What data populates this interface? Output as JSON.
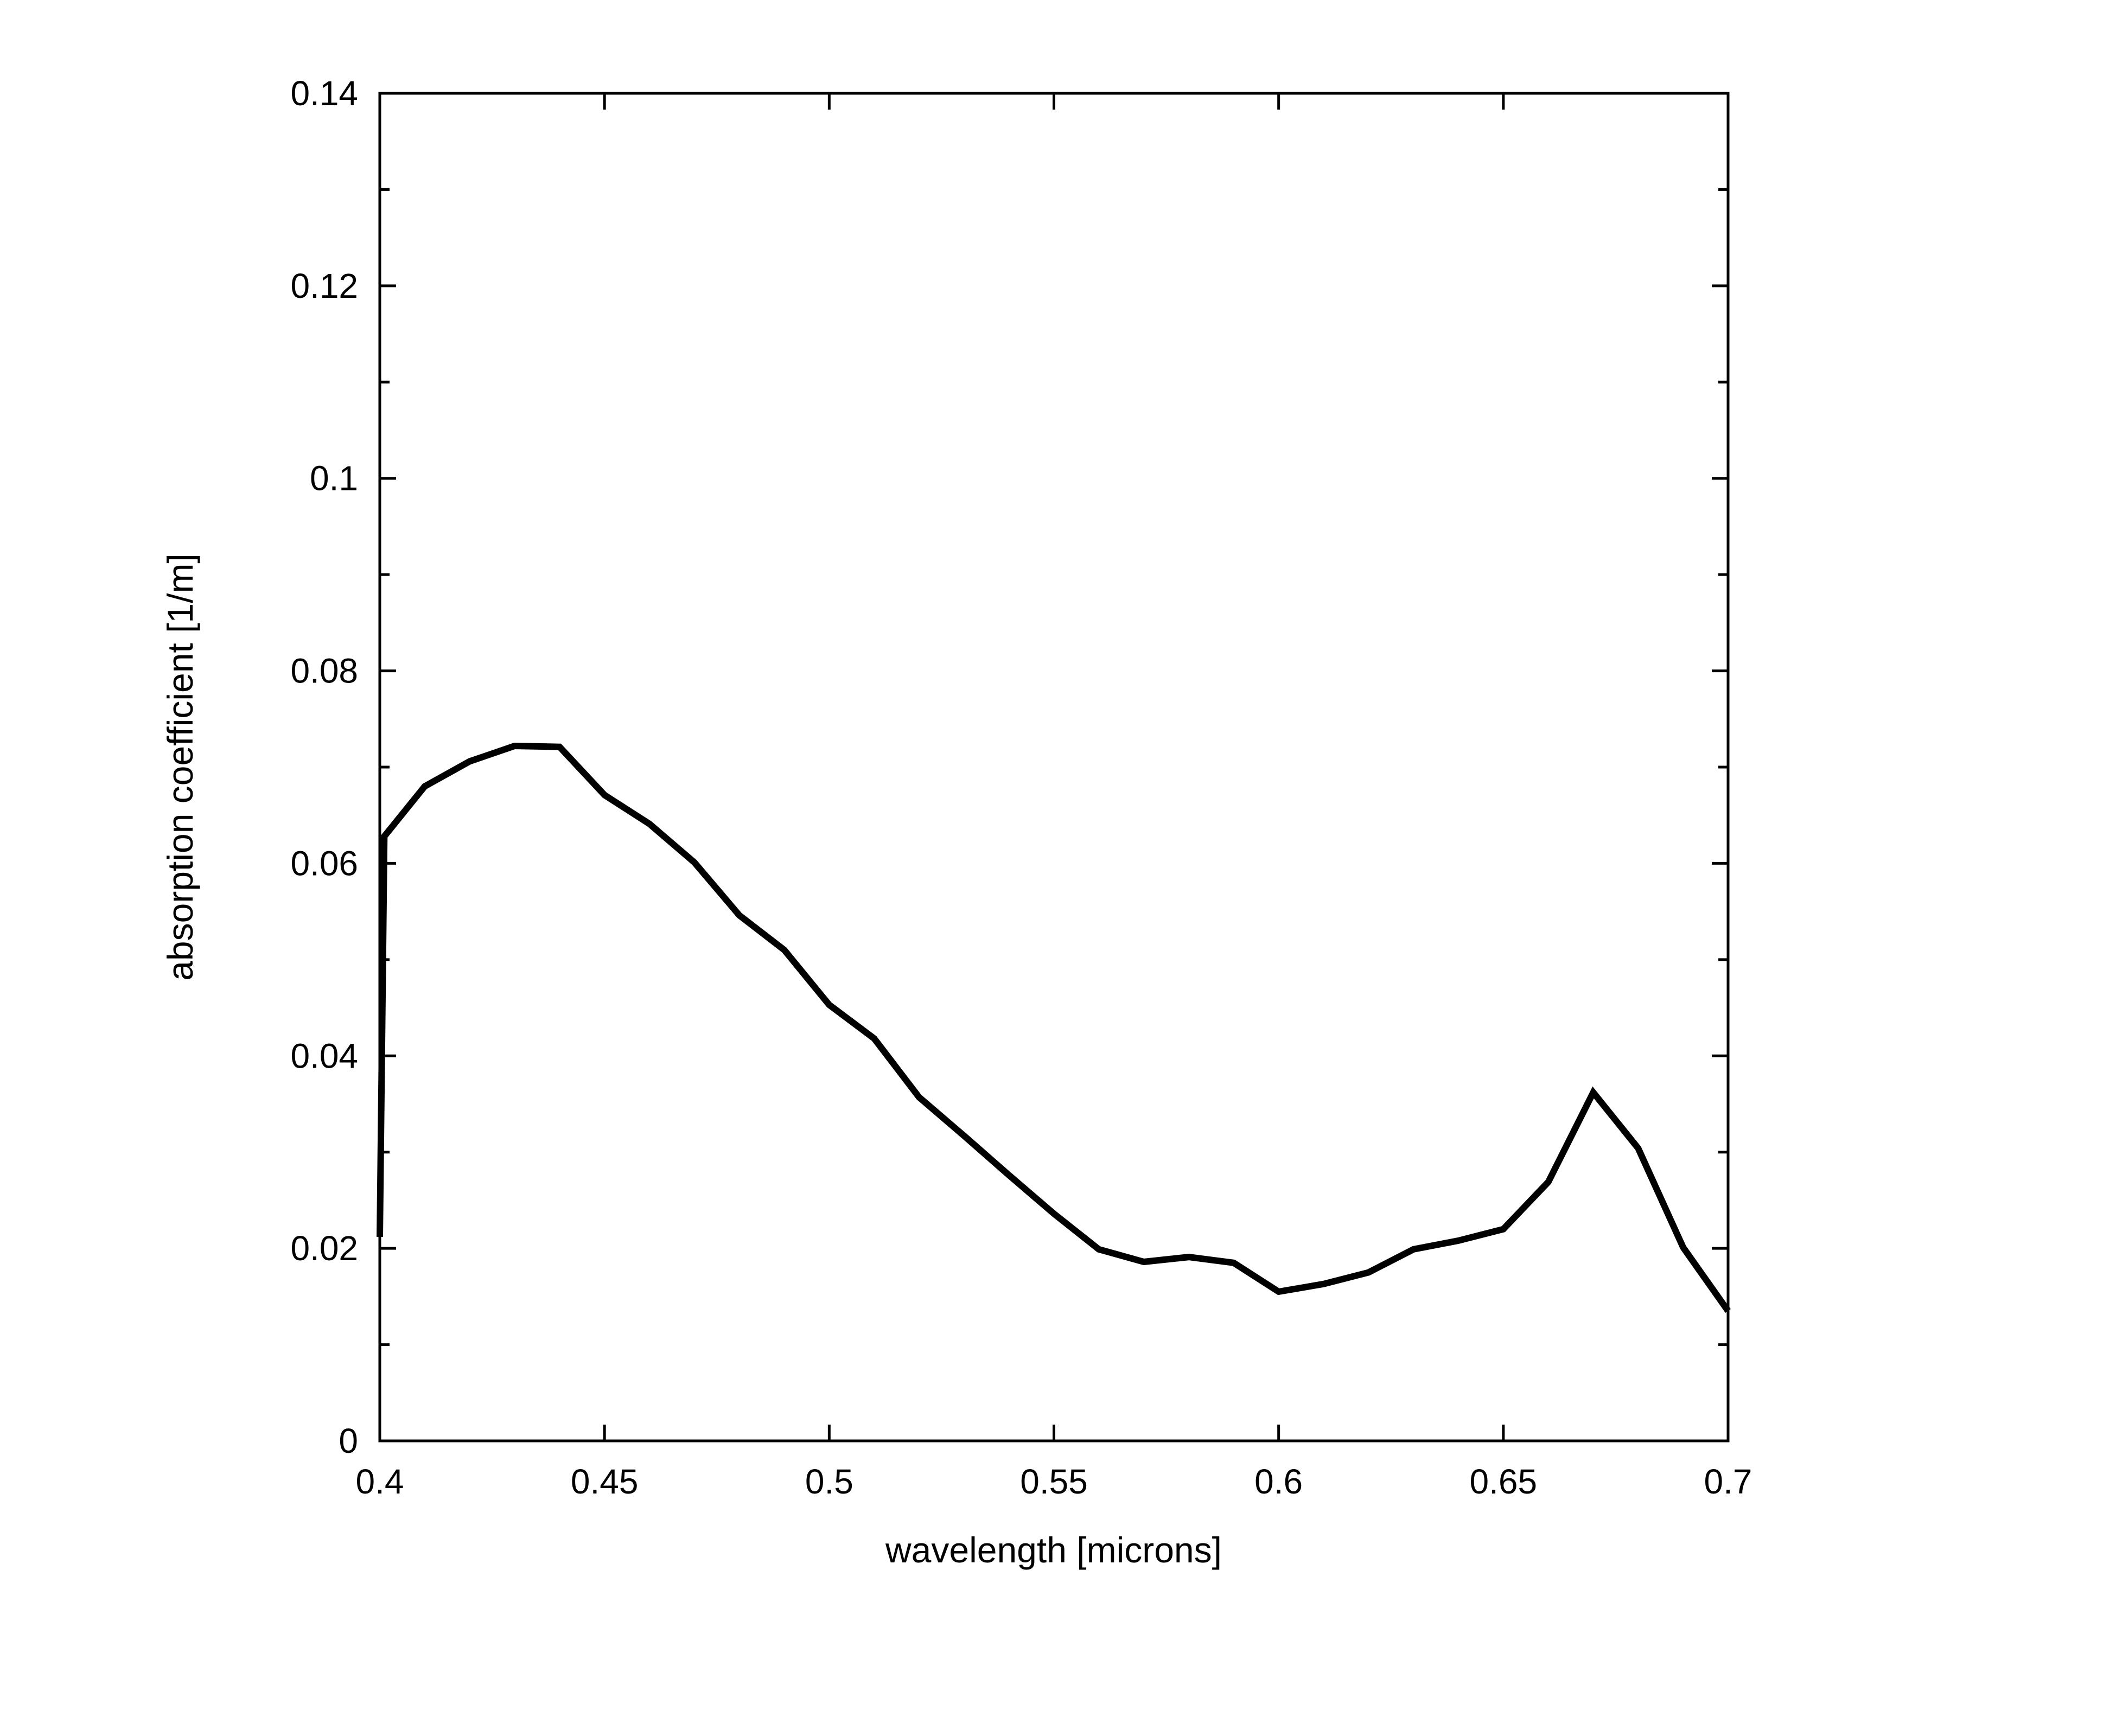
{
  "chart_data": {
    "type": "line",
    "title": "",
    "xlabel": "wavelength [microns]",
    "ylabel": "absorption coefficient [1/m]",
    "xlim": [
      0.4,
      0.7
    ],
    "ylim": [
      0,
      0.14
    ],
    "xticks": [
      0.4,
      0.45,
      0.5,
      0.55,
      0.6,
      0.65,
      0.7
    ],
    "xtick_labels": [
      "0.4",
      "0.45",
      "0.5",
      "0.55",
      "0.6",
      "0.65",
      "0.7"
    ],
    "yticks": [
      0,
      0.02,
      0.04,
      0.06,
      0.08,
      0.1,
      0.12,
      0.14
    ],
    "ytick_labels": [
      "0",
      "0.02",
      "0.04",
      "0.06",
      "0.08",
      "0.1",
      "0.12",
      "0.14"
    ],
    "y_minor_ticks": [
      0.01,
      0.03,
      0.05,
      0.07,
      0.09,
      0.11,
      0.13
    ],
    "grid": false,
    "legend": false,
    "line_color": "#000000",
    "series": [
      {
        "x": [
          0.4,
          0.401,
          0.41,
          0.42,
          0.43,
          0.44,
          0.45,
          0.46,
          0.47,
          0.48,
          0.49,
          0.5,
          0.51,
          0.52,
          0.53,
          0.54,
          0.55,
          0.56,
          0.57,
          0.58,
          0.59,
          0.6,
          0.61,
          0.62,
          0.63,
          0.64,
          0.65,
          0.66,
          0.67,
          0.68,
          0.69,
          0.7
        ],
        "y": [
          0.0212,
          0.0628,
          0.068,
          0.0706,
          0.0722,
          0.0721,
          0.0671,
          0.0641,
          0.0601,
          0.0546,
          0.051,
          0.0453,
          0.0418,
          0.0357,
          0.0317,
          0.0276,
          0.0236,
          0.0199,
          0.0186,
          0.0191,
          0.0185,
          0.0155,
          0.0163,
          0.0175,
          0.0199,
          0.0208,
          0.022,
          0.0269,
          0.0362,
          0.0304,
          0.0201,
          0.0135
        ]
      }
    ]
  }
}
